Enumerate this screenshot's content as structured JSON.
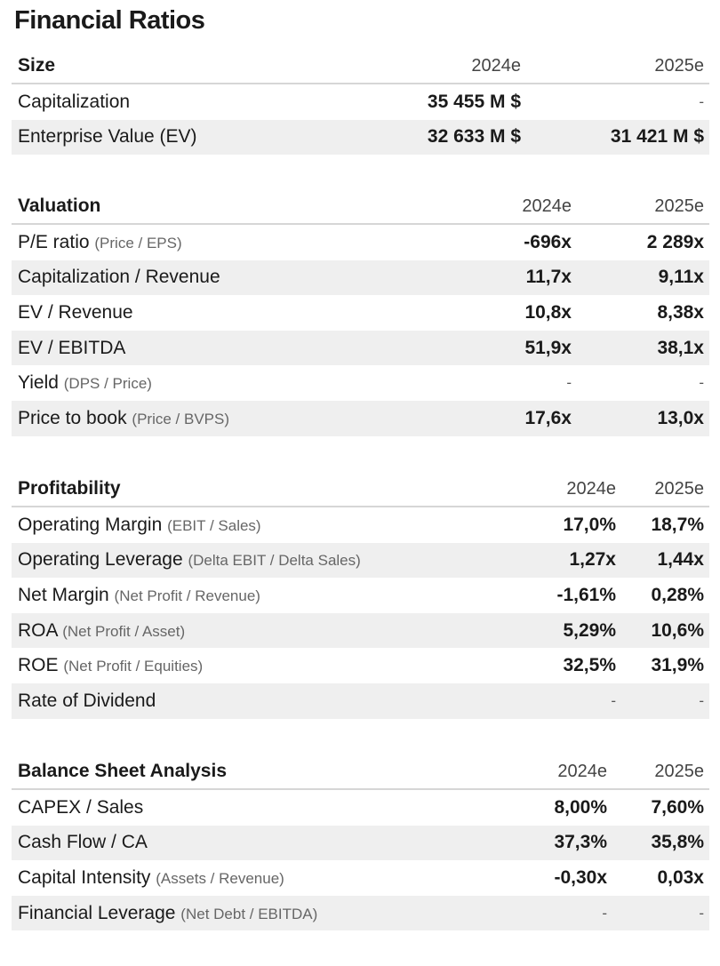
{
  "title": "Financial Ratios",
  "sections": [
    {
      "heading": "Size",
      "col_2024": "2024e",
      "col_2025": "2025e",
      "rows": [
        {
          "label": "Capitalization",
          "sub": "",
          "v2024": "35 455 M $",
          "v2025": "-"
        },
        {
          "label": "Enterprise Value (EV)",
          "sub": "",
          "v2024": "32 633 M $",
          "v2025": "31 421 M $"
        }
      ]
    },
    {
      "heading": "Valuation",
      "col_2024": "2024e",
      "col_2025": "2025e",
      "rows": [
        {
          "label": "P/E ratio",
          "sub": "(Price / EPS)",
          "v2024": "-696x",
          "v2025": "2 289x"
        },
        {
          "label": "Capitalization / Revenue",
          "sub": "",
          "v2024": "11,7x",
          "v2025": "9,11x"
        },
        {
          "label": "EV / Revenue",
          "sub": "",
          "v2024": "10,8x",
          "v2025": "8,38x"
        },
        {
          "label": "EV / EBITDA",
          "sub": "",
          "v2024": "51,9x",
          "v2025": "38,1x"
        },
        {
          "label": "Yield",
          "sub": "(DPS / Price)",
          "v2024": "-",
          "v2025": "-"
        },
        {
          "label": "Price to book",
          "sub": "(Price / BVPS)",
          "v2024": "17,6x",
          "v2025": "13,0x"
        }
      ]
    },
    {
      "heading": "Profitability",
      "col_2024": "2024e",
      "col_2025": "2025e",
      "rows": [
        {
          "label": "Operating Margin",
          "sub": "(EBIT / Sales)",
          "v2024": "17,0%",
          "v2025": "18,7%"
        },
        {
          "label": "Operating Leverage",
          "sub": "(Delta EBIT / Delta Sales)",
          "v2024": "1,27x",
          "v2025": "1,44x"
        },
        {
          "label": "Net Margin",
          "sub": "(Net Profit / Revenue)",
          "v2024": "-1,61%",
          "v2025": "0,28%"
        },
        {
          "label": "ROA",
          "sub": "(Net Profit / Asset)",
          "v2024": "5,29%",
          "v2025": "10,6%"
        },
        {
          "label": "ROE",
          "sub": "(Net Profit / Equities)",
          "v2024": "32,5%",
          "v2025": "31,9%"
        },
        {
          "label": "Rate of Dividend",
          "sub": "",
          "v2024": "-",
          "v2025": "-"
        }
      ]
    },
    {
      "heading": "Balance Sheet Analysis",
      "col_2024": "2024e",
      "col_2025": "2025e",
      "rows": [
        {
          "label": "CAPEX / Sales",
          "sub": "",
          "v2024": "8,00%",
          "v2025": "7,60%"
        },
        {
          "label": "Cash Flow / CA",
          "sub": "",
          "v2024": "37,3%",
          "v2025": "35,8%"
        },
        {
          "label": "Capital Intensity",
          "sub": "(Assets / Revenue)",
          "v2024": "-0,30x",
          "v2025": "0,03x"
        },
        {
          "label": "Financial Leverage",
          "sub": "(Net Debt / EBITDA)",
          "v2024": "-",
          "v2025": "-"
        }
      ]
    }
  ]
}
